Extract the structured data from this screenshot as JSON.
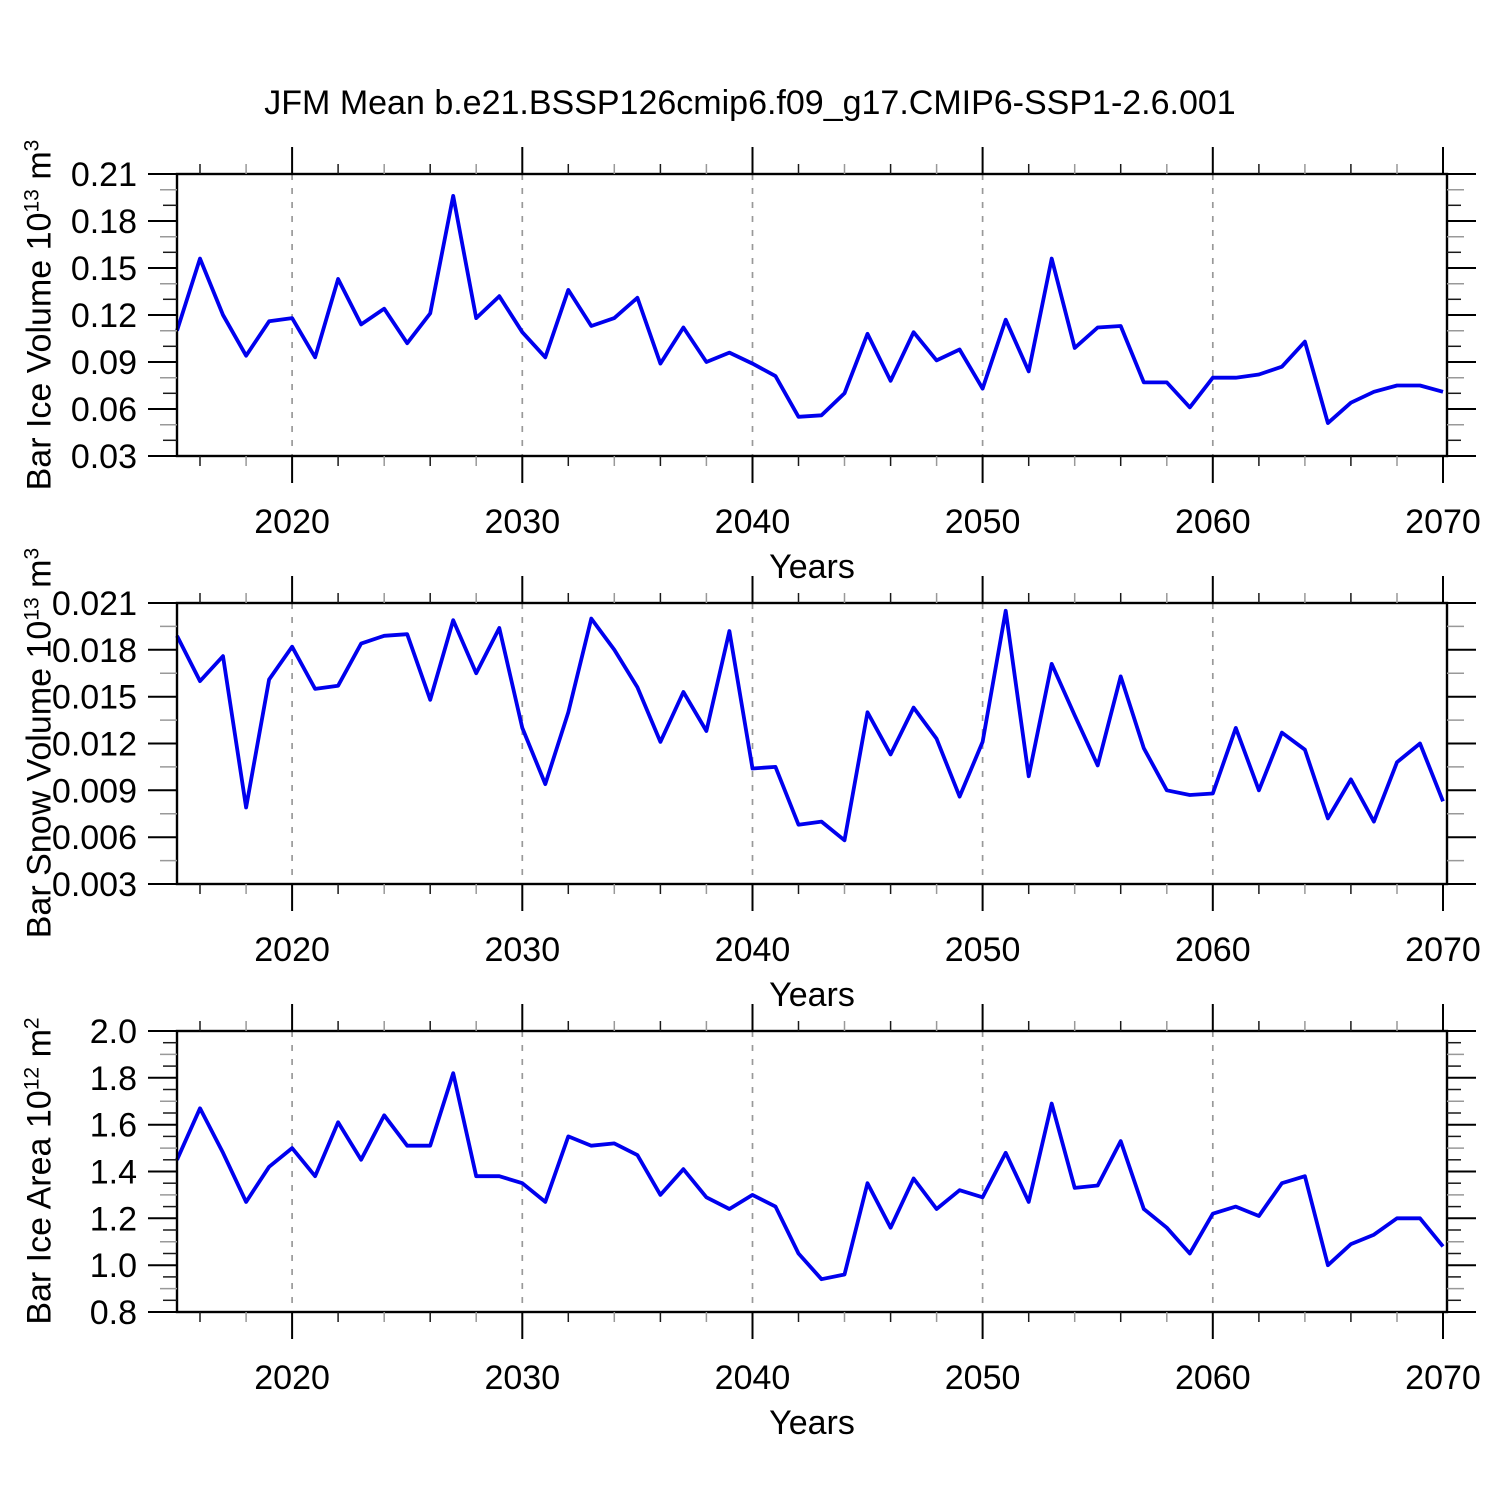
{
  "title": "JFM Mean b.e21.BSSP126cmip6.f09_g17.CMIP6-SSP1-2.6.001",
  "colors": {
    "line": "#0000EE",
    "grid": "#999999",
    "frame": "#000000",
    "text": "#000000",
    "minor_tick_dark": "#1a1a1a",
    "minor_tick_gray": "#999999"
  },
  "panels": [
    {
      "ylabel": {
        "base": "Bar Ice Volume 10",
        "exp": "13",
        "unit": " m",
        "unit_exp": "3"
      },
      "xlabel": "Years"
    },
    {
      "ylabel": {
        "base": "Bar Snow Volume 10",
        "exp": "13",
        "unit": " m",
        "unit_exp": "3"
      },
      "xlabel": "Years"
    },
    {
      "ylabel": {
        "base": "Bar Ice Area 10",
        "exp": "12",
        "unit": " m",
        "unit_exp": "2"
      },
      "xlabel": "Years"
    }
  ],
  "chart_data": [
    {
      "type": "line",
      "name": "ice-volume",
      "title": "JFM Mean b.e21.BSSP126cmip6.f09_g17.CMIP6-SSP1-2.6.001",
      "ylabel": "Bar Ice Volume 10^13 m^3",
      "xlabel": "Years",
      "line_color": "#0000EE",
      "ylim": [
        0.03,
        0.21
      ],
      "yticks": [
        0.03,
        0.06,
        0.09,
        0.12,
        0.15,
        0.18,
        0.21
      ],
      "ytick_labels": [
        "0.03",
        "0.06",
        "0.09",
        "0.12",
        "0.15",
        "0.18",
        "0.21"
      ],
      "ytick_step": 0.03,
      "yminor_step": 0.01,
      "xlim": [
        2015,
        2070.2
      ],
      "xticks": [
        2020,
        2030,
        2040,
        2050,
        2060,
        2070
      ],
      "xtick_labels": [
        "2020",
        "2030",
        "2040",
        "2050",
        "2060",
        "2070"
      ],
      "xminor_step": 2,
      "grid_x": [
        2020,
        2030,
        2040,
        2050,
        2060
      ],
      "x_years": [
        2015,
        2016,
        2017,
        2018,
        2019,
        2020,
        2021,
        2022,
        2023,
        2024,
        2025,
        2026,
        2027,
        2028,
        2029,
        2030,
        2031,
        2032,
        2033,
        2034,
        2035,
        2036,
        2037,
        2038,
        2039,
        2040,
        2041,
        2042,
        2043,
        2044,
        2045,
        2046,
        2047,
        2048,
        2049,
        2050,
        2051,
        2052,
        2053,
        2054,
        2055,
        2056,
        2057,
        2058,
        2059,
        2060,
        2061,
        2062,
        2063,
        2064,
        2065,
        2066,
        2067,
        2068,
        2069,
        2070
      ],
      "values": [
        0.11,
        0.156,
        0.12,
        0.094,
        0.116,
        0.118,
        0.093,
        0.143,
        0.114,
        0.124,
        0.102,
        0.121,
        0.196,
        0.118,
        0.132,
        0.109,
        0.093,
        0.136,
        0.113,
        0.118,
        0.131,
        0.089,
        0.112,
        0.09,
        0.096,
        0.089,
        0.081,
        0.055,
        0.056,
        0.07,
        0.108,
        0.078,
        0.109,
        0.091,
        0.098,
        0.073,
        0.117,
        0.084,
        0.156,
        0.099,
        0.112,
        0.113,
        0.077,
        0.077,
        0.061,
        0.08,
        0.08,
        0.082,
        0.087,
        0.103,
        0.051,
        0.064,
        0.071,
        0.075,
        0.075,
        0.071
      ]
    },
    {
      "type": "line",
      "name": "snow-volume",
      "title": "",
      "ylabel": "Bar Snow Volume 10^13 m^3",
      "xlabel": "Years",
      "line_color": "#0000EE",
      "ylim": [
        0.003,
        0.021
      ],
      "yticks": [
        0.003,
        0.006,
        0.009,
        0.012,
        0.015,
        0.018,
        0.021
      ],
      "ytick_labels": [
        "0.003",
        "0.006",
        "0.009",
        "0.012",
        "0.015",
        "0.018",
        "0.021"
      ],
      "ytick_step": 0.003,
      "yminor_step": 0.0015,
      "xlim": [
        2015,
        2070.2
      ],
      "xticks": [
        2020,
        2030,
        2040,
        2050,
        2060,
        2070
      ],
      "xtick_labels": [
        "2020",
        "2030",
        "2040",
        "2050",
        "2060",
        "2070"
      ],
      "xminor_step": 2,
      "grid_x": [
        2020,
        2030,
        2040,
        2050,
        2060
      ],
      "x_years": [
        2015,
        2016,
        2017,
        2018,
        2019,
        2020,
        2021,
        2022,
        2023,
        2024,
        2025,
        2026,
        2027,
        2028,
        2029,
        2030,
        2031,
        2032,
        2033,
        2034,
        2035,
        2036,
        2037,
        2038,
        2039,
        2040,
        2041,
        2042,
        2043,
        2044,
        2045,
        2046,
        2047,
        2048,
        2049,
        2050,
        2051,
        2052,
        2053,
        2054,
        2055,
        2056,
        2057,
        2058,
        2059,
        2060,
        2061,
        2062,
        2063,
        2064,
        2065,
        2066,
        2067,
        2068,
        2069,
        2070
      ],
      "values": [
        0.0189,
        0.016,
        0.0176,
        0.0079,
        0.0161,
        0.0182,
        0.0155,
        0.0157,
        0.0184,
        0.0189,
        0.019,
        0.0148,
        0.0199,
        0.0165,
        0.0194,
        0.013,
        0.0094,
        0.014,
        0.02,
        0.018,
        0.0156,
        0.0121,
        0.0153,
        0.0128,
        0.0192,
        0.0104,
        0.0105,
        0.0068,
        0.007,
        0.0058,
        0.014,
        0.0113,
        0.0143,
        0.0123,
        0.0086,
        0.0121,
        0.0205,
        0.0099,
        0.0171,
        0.0138,
        0.0106,
        0.0163,
        0.0117,
        0.009,
        0.0087,
        0.0088,
        0.013,
        0.009,
        0.0127,
        0.0116,
        0.0072,
        0.0097,
        0.007,
        0.0108,
        0.012,
        0.0083
      ]
    },
    {
      "type": "line",
      "name": "ice-area",
      "title": "",
      "ylabel": "Bar Ice Area 10^12 m^2",
      "xlabel": "Years",
      "line_color": "#0000EE",
      "ylim": [
        0.8,
        2.0
      ],
      "yticks": [
        0.8,
        1.0,
        1.2,
        1.4,
        1.6,
        1.8,
        2.0
      ],
      "ytick_labels": [
        "0.8",
        "1.0",
        "1.2",
        "1.4",
        "1.6",
        "1.8",
        "2.0"
      ],
      "ytick_step": 0.2,
      "yminor_step": 0.05,
      "xlim": [
        2015,
        2070.2
      ],
      "xticks": [
        2020,
        2030,
        2040,
        2050,
        2060,
        2070
      ],
      "xtick_labels": [
        "2020",
        "2030",
        "2040",
        "2050",
        "2060",
        "2070"
      ],
      "xminor_step": 2,
      "grid_x": [
        2020,
        2030,
        2040,
        2050,
        2060
      ],
      "x_years": [
        2015,
        2016,
        2017,
        2018,
        2019,
        2020,
        2021,
        2022,
        2023,
        2024,
        2025,
        2026,
        2027,
        2028,
        2029,
        2030,
        2031,
        2032,
        2033,
        2034,
        2035,
        2036,
        2037,
        2038,
        2039,
        2040,
        2041,
        2042,
        2043,
        2044,
        2045,
        2046,
        2047,
        2048,
        2049,
        2050,
        2051,
        2052,
        2053,
        2054,
        2055,
        2056,
        2057,
        2058,
        2059,
        2060,
        2061,
        2062,
        2063,
        2064,
        2065,
        2066,
        2067,
        2068,
        2069,
        2070
      ],
      "values": [
        1.45,
        1.67,
        1.48,
        1.27,
        1.42,
        1.5,
        1.38,
        1.61,
        1.45,
        1.64,
        1.51,
        1.51,
        1.82,
        1.38,
        1.38,
        1.35,
        1.27,
        1.55,
        1.51,
        1.52,
        1.47,
        1.3,
        1.41,
        1.29,
        1.24,
        1.3,
        1.25,
        1.05,
        0.94,
        0.96,
        1.35,
        1.16,
        1.37,
        1.24,
        1.32,
        1.29,
        1.48,
        1.27,
        1.69,
        1.33,
        1.34,
        1.53,
        1.24,
        1.16,
        1.05,
        1.22,
        1.25,
        1.21,
        1.35,
        1.38,
        1.0,
        1.09,
        1.13,
        1.2,
        1.2,
        1.08
      ]
    }
  ]
}
